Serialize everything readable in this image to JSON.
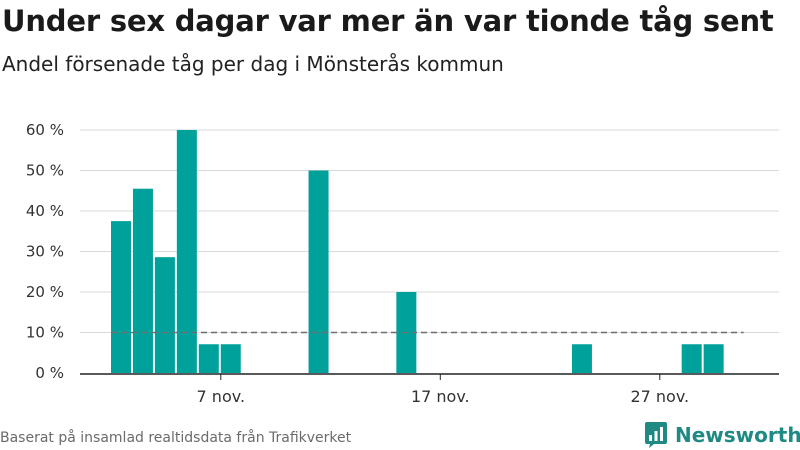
{
  "title": "Under sex dagar var mer än var tionde tåg sent",
  "subtitle": "Andel försenade tåg per dag i Mönsterås kommun",
  "footer": "Baserat på insamlad realtidsdata från Trafikverket",
  "brand": {
    "name": "Newsworthy",
    "icon": "bar-chart-logo-icon"
  },
  "colors": {
    "bar": "#00a19a",
    "grid": "#d9d9d9",
    "reference": "#6e6e6e",
    "brand": "#1f8a84"
  },
  "chart_data": {
    "type": "bar",
    "x": [
      "2024-11-03",
      "2024-11-04",
      "2024-11-05",
      "2024-11-06",
      "2024-11-07",
      "2024-11-08",
      "2024-11-09",
      "2024-11-10",
      "2024-11-11",
      "2024-11-12",
      "2024-11-13",
      "2024-11-14",
      "2024-11-15",
      "2024-11-16",
      "2024-11-17",
      "2024-11-18",
      "2024-11-19",
      "2024-11-20",
      "2024-11-21",
      "2024-11-22",
      "2024-11-23",
      "2024-11-24",
      "2024-11-25",
      "2024-11-26",
      "2024-11-27",
      "2024-11-28",
      "2024-11-29",
      "2024-11-30"
    ],
    "values": [
      37.5,
      45.5,
      28.6,
      60,
      7.1,
      7.1,
      0,
      0,
      0,
      50,
      0,
      0,
      0,
      20,
      0,
      0,
      0,
      0,
      0,
      0,
      0,
      7.1,
      0,
      0,
      0,
      0,
      7.1,
      7.1
    ],
    "reference_line": 10,
    "xticks": [
      {
        "date": "2024-11-07",
        "label": "7 nov."
      },
      {
        "date": "2024-11-17",
        "label": "17 nov."
      },
      {
        "date": "2024-11-27",
        "label": "27 nov."
      }
    ],
    "yticks": [
      {
        "value": 0,
        "label": "0 %"
      },
      {
        "value": 10,
        "label": "10 %"
      },
      {
        "value": 20,
        "label": "20 %"
      },
      {
        "value": 30,
        "label": "30 %"
      },
      {
        "value": 40,
        "label": "40 %"
      },
      {
        "value": 50,
        "label": "50 %"
      },
      {
        "value": 60,
        "label": "60 %"
      }
    ],
    "ylim": [
      0,
      60
    ],
    "grid": true,
    "legend": "none"
  }
}
